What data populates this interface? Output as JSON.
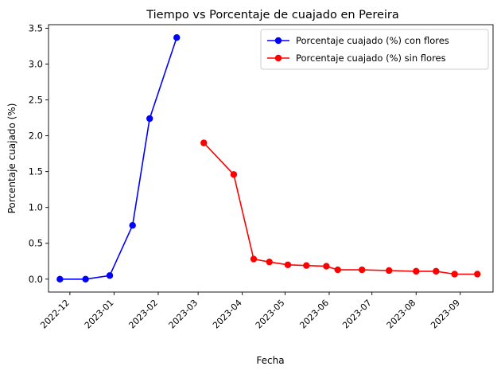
{
  "chart_data": {
    "type": "line",
    "title": "Tiempo vs Porcentaje de cuajado en Pereira",
    "xlabel": "Fecha",
    "ylabel": "Porcentaje cuajado (%)",
    "xlim": [
      "2022-11-16",
      "2023-09-24"
    ],
    "ylim": [
      -0.18,
      3.55
    ],
    "xticks": [
      "2022-12-01",
      "2023-01-01",
      "2023-02-01",
      "2023-03-01",
      "2023-04-01",
      "2023-05-01",
      "2023-06-01",
      "2023-07-01",
      "2023-08-01",
      "2023-09-01"
    ],
    "xtick_labels": [
      "2022-12",
      "2023-01",
      "2023-02",
      "2023-03",
      "2023-04",
      "2023-05",
      "2023-06",
      "2023-07",
      "2023-08",
      "2023-09"
    ],
    "yticks": [
      0.0,
      0.5,
      1.0,
      1.5,
      2.0,
      2.5,
      3.0,
      3.5
    ],
    "ytick_labels": [
      "0.0",
      "0.5",
      "1.0",
      "1.5",
      "2.0",
      "2.5",
      "3.0",
      "3.5"
    ],
    "grid": false,
    "legend_position": "top-right",
    "series": [
      {
        "name": "Porcentaje cuajado (%) con flores",
        "color": "#0000ff",
        "marker": "circle",
        "points": [
          {
            "x": "2022-11-24",
            "y": 0.0
          },
          {
            "x": "2022-12-12",
            "y": 0.0
          },
          {
            "x": "2022-12-29",
            "y": 0.05
          },
          {
            "x": "2023-01-14",
            "y": 0.75
          },
          {
            "x": "2023-01-26",
            "y": 2.24
          },
          {
            "x": "2023-02-14",
            "y": 3.37
          }
        ]
      },
      {
        "name": "Porcentaje cuajado (%) sin flores",
        "color": "#ff0000",
        "marker": "circle",
        "points": [
          {
            "x": "2023-03-05",
            "y": 1.9
          },
          {
            "x": "2023-03-26",
            "y": 1.46
          },
          {
            "x": "2023-04-09",
            "y": 0.28
          },
          {
            "x": "2023-04-20",
            "y": 0.24
          },
          {
            "x": "2023-05-03",
            "y": 0.2
          },
          {
            "x": "2023-05-16",
            "y": 0.19
          },
          {
            "x": "2023-05-30",
            "y": 0.18
          },
          {
            "x": "2023-06-07",
            "y": 0.13
          },
          {
            "x": "2023-06-24",
            "y": 0.13
          },
          {
            "x": "2023-07-13",
            "y": 0.12
          },
          {
            "x": "2023-08-01",
            "y": 0.11
          },
          {
            "x": "2023-08-15",
            "y": 0.11
          },
          {
            "x": "2023-08-28",
            "y": 0.07
          },
          {
            "x": "2023-09-13",
            "y": 0.07
          }
        ]
      }
    ]
  }
}
